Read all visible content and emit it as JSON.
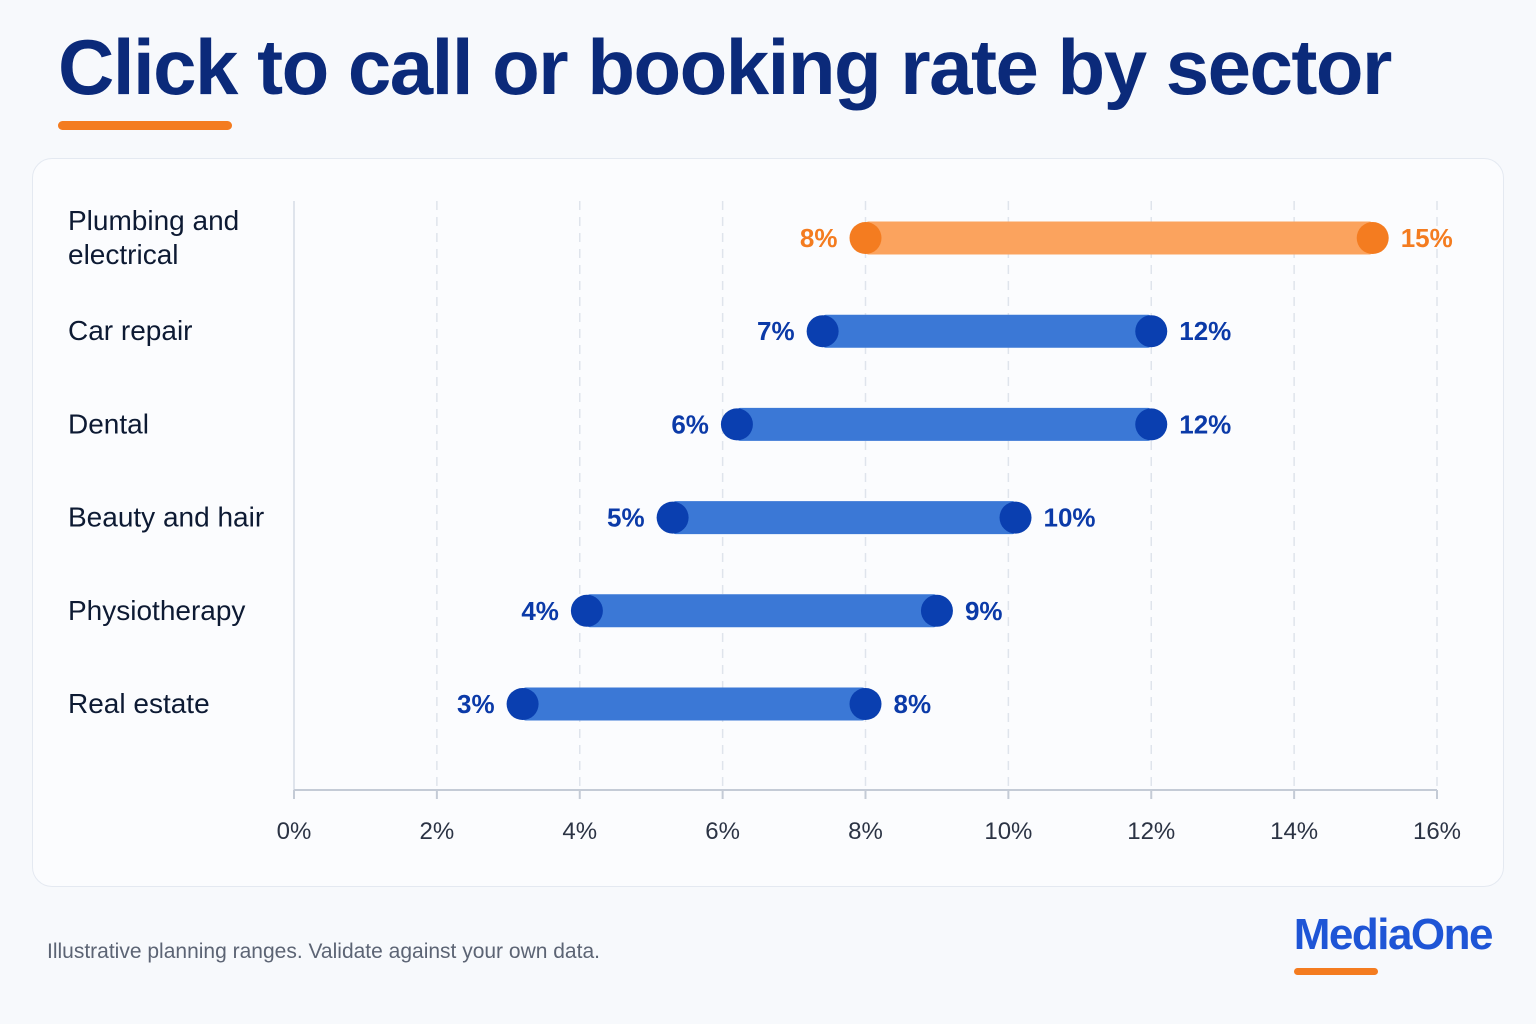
{
  "title": "Click to call or booking rate by sector",
  "footnote": "Illustrative planning ranges. Validate against your own data.",
  "brand": "MediaOne",
  "colors": {
    "title": "#0b2a7a",
    "accent": "#f47c20",
    "highlight_bar": "#fba35e",
    "highlight_dot": "#f47c20",
    "bar": "#3b78d6",
    "dot": "#0a3fb0",
    "label_blue": "#0b3aa8",
    "grid": "#dfe4ec",
    "axis": "#c4cbd6",
    "tick_text": "#2b3344",
    "category_text": "#0d1a33",
    "brand": "#1e55d6"
  },
  "chart_data": {
    "type": "bar",
    "subtype": "range",
    "title": "Click to call or booking rate by sector",
    "xlabel": "",
    "ylabel": "",
    "xlim": [
      0,
      16
    ],
    "x_ticks": [
      0,
      2,
      4,
      6,
      8,
      10,
      12,
      14,
      16
    ],
    "x_tick_labels": [
      "0%",
      "2%",
      "4%",
      "6%",
      "8%",
      "10%",
      "12%",
      "14%",
      "16%"
    ],
    "grid": true,
    "categories": [
      [
        "Plumbing and",
        "electrical"
      ],
      [
        "Car repair"
      ],
      [
        "Dental"
      ],
      [
        "Beauty and hair"
      ],
      [
        "Physiotherapy"
      ],
      [
        "Real estate"
      ]
    ],
    "series": [
      {
        "low": [
          8,
          7.4,
          6.2,
          5.3,
          4.1,
          3.2
        ],
        "high": [
          15.1,
          12,
          12,
          10.1,
          9,
          8
        ],
        "low_labels": [
          "8%",
          "7%",
          "6%",
          "5%",
          "4%",
          "3%"
        ],
        "high_labels": [
          "15%",
          "12%",
          "12%",
          "10%",
          "9%",
          "8%"
        ],
        "highlight": [
          true,
          false,
          false,
          false,
          false,
          false
        ]
      }
    ]
  }
}
